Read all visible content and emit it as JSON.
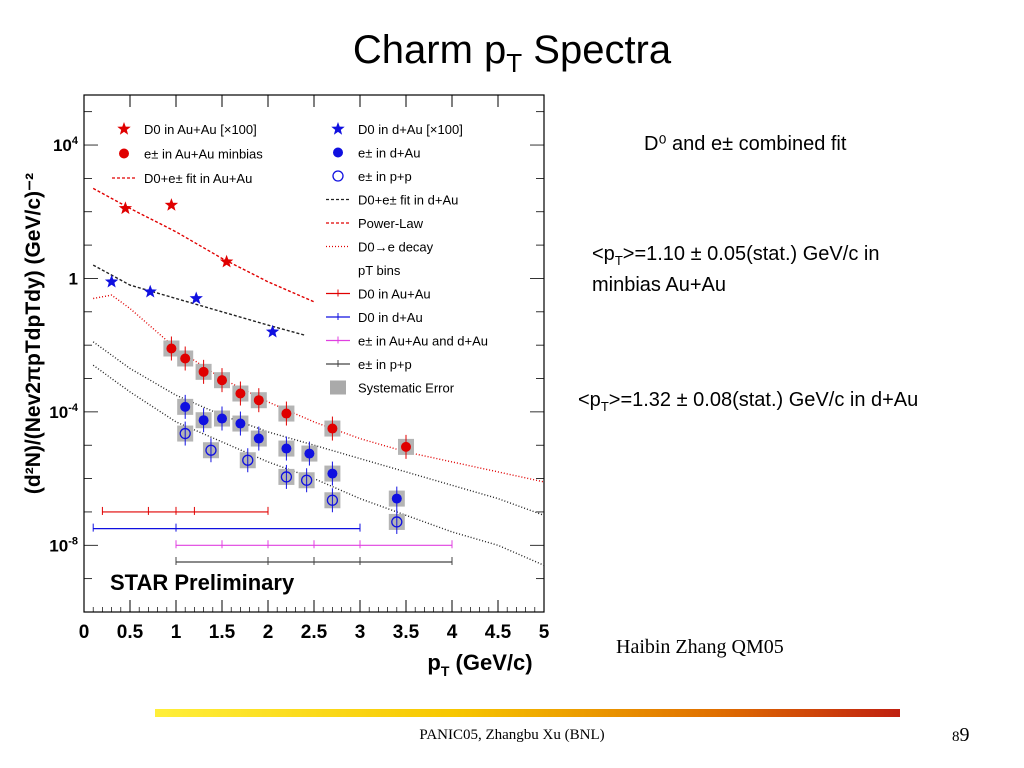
{
  "slide": {
    "title_main": "Charm p",
    "title_sub": "T",
    "title_tail": " Spectra",
    "combined_fit": "D⁰ and e± combined fit",
    "note_auau_1": "<p",
    "note_auau_2": "T",
    "note_auau_3": ">=1.10 ± 0.05(stat.) GeV/c in",
    "note_auau_4": "minbias Au+Au",
    "note_dau_1": "<p",
    "note_dau_2": "T",
    "note_dau_3": ">=1.32 ± 0.08(stat.) GeV/c in d+Au",
    "credit": "Haibin Zhang  QM05",
    "footer": "PANIC05,  Zhangbu Xu (BNL)",
    "page_small": "8",
    "page_big": "9"
  },
  "chart_data": {
    "type": "scatter",
    "title": "",
    "xlabel": "pT (GeV/c)",
    "ylabel": "(d²N)/(Nev2πpTdpTdy) (GeV/c)⁻²",
    "xlim": [
      0,
      5
    ],
    "ylim_log10": [
      -10,
      5.5
    ],
    "x_ticks": [
      "0",
      "0.5",
      "1",
      "1.5",
      "2",
      "2.5",
      "3",
      "3.5",
      "4",
      "4.5",
      "5"
    ],
    "y_ticks": [
      "10^4",
      "1",
      "10^-4",
      "10^-8"
    ],
    "y_tick_values": [
      4,
      0,
      -4,
      -8
    ],
    "annotation": "STAR Preliminary",
    "legend_position": "top",
    "series": [
      {
        "name": "D0 in Au+Au [×100]",
        "marker": "star",
        "color": "#e00000",
        "x": [
          0.45,
          0.95,
          1.55
        ],
        "log10y": [
          2.1,
          2.2,
          0.5
        ]
      },
      {
        "name": "D0 in d+Au [×100]",
        "marker": "star",
        "color": "#1010e0",
        "x": [
          0.3,
          0.72,
          1.22,
          2.05
        ],
        "log10y": [
          -0.1,
          -0.4,
          -0.6,
          -1.6
        ]
      },
      {
        "name": "e± in Au+Au minbias",
        "marker": "circle",
        "color": "#e00000",
        "x": [
          0.95,
          1.1,
          1.3,
          1.5,
          1.7,
          1.9,
          2.2,
          2.7,
          3.5
        ],
        "log10y": [
          -2.1,
          -2.4,
          -2.8,
          -3.05,
          -3.45,
          -3.65,
          -4.05,
          -4.5,
          -5.05
        ]
      },
      {
        "name": "e± in d+Au",
        "marker": "circle",
        "color": "#1010e0",
        "x": [
          1.1,
          1.3,
          1.5,
          1.7,
          1.9,
          2.2,
          2.45,
          2.7,
          3.4
        ],
        "log10y": [
          -3.85,
          -4.25,
          -4.2,
          -4.35,
          -4.8,
          -5.1,
          -5.25,
          -5.85,
          -6.6
        ]
      },
      {
        "name": "e± in p+p",
        "marker": "open-circle",
        "color": "#1010e0",
        "x": [
          1.1,
          1.38,
          1.78,
          2.2,
          2.42,
          2.7,
          3.4
        ],
        "log10y": [
          -4.65,
          -5.15,
          -5.45,
          -5.95,
          -6.05,
          -6.65,
          -7.3
        ]
      }
    ],
    "curves": [
      {
        "name": "D0+e± fit in Au+Au",
        "color": "#e00000",
        "dash": "3,2",
        "x": [
          0.1,
          0.5,
          1.0,
          1.5,
          2.0,
          2.5
        ],
        "log10y": [
          2.7,
          2.1,
          1.4,
          0.6,
          -0.1,
          -0.7
        ]
      },
      {
        "name": "D0+e± fit in d+Au",
        "color": "#222222",
        "dash": "3,2",
        "x": [
          0.1,
          0.5,
          1.0,
          1.5,
          2.0,
          2.4
        ],
        "log10y": [
          0.4,
          -0.2,
          -0.6,
          -1.0,
          -1.4,
          -1.7
        ]
      },
      {
        "name": "D0→e decay",
        "color": "#e00000",
        "dash": "1,2",
        "x": [
          0.1,
          0.3,
          0.5,
          1.0,
          1.5,
          2.0,
          2.5,
          3.0,
          3.5,
          4.0,
          4.5,
          5.0
        ],
        "log10y": [
          -0.6,
          -0.5,
          -0.9,
          -2.1,
          -3.0,
          -3.7,
          -4.3,
          -4.8,
          -5.2,
          -5.5,
          -5.8,
          -6.1
        ]
      },
      {
        "name": "e± in Au+Au and d+Au fit",
        "color": "#222222",
        "dash": "1,2",
        "x": [
          0.1,
          0.5,
          1.0,
          1.5,
          2.0,
          2.5,
          3.0,
          3.5,
          4.0,
          4.5,
          5.0
        ],
        "log10y": [
          -1.9,
          -2.7,
          -3.5,
          -4.1,
          -4.6,
          -5.0,
          -5.4,
          -5.8,
          -6.2,
          -6.6,
          -7.1
        ]
      },
      {
        "name": "e± in p+p fit",
        "color": "#222222",
        "dash": "1,2",
        "x": [
          0.1,
          0.5,
          1.0,
          1.5,
          2.0,
          2.5,
          3.0,
          3.5,
          4.0,
          4.5,
          5.0
        ],
        "log10y": [
          -2.6,
          -3.4,
          -4.3,
          -4.9,
          -5.5,
          -6.0,
          -6.6,
          -7.1,
          -7.6,
          -8.0,
          -8.6
        ]
      }
    ],
    "bins": [
      {
        "name": "D0 in Au+Au",
        "color": "#e00000",
        "log10y": -7.0,
        "x_edges": [
          0.2,
          0.7,
          1.0,
          1.2,
          2.0
        ]
      },
      {
        "name": "D0 in d+Au",
        "color": "#1010e0",
        "log10y": -7.5,
        "x_edges": [
          0.1,
          1.0,
          3.0
        ]
      },
      {
        "name": "e± in Au+Au and d+Au",
        "color": "#e040e0",
        "log10y": -8.0,
        "x_edges": [
          1.0,
          1.5,
          2.0,
          2.5,
          3.0,
          4.0
        ]
      },
      {
        "name": "e± in p+p",
        "color": "#444444",
        "log10y": -8.5,
        "x_edges": [
          1.0,
          2.0,
          2.5,
          3.0,
          4.0
        ]
      }
    ],
    "legend_left": [
      {
        "label": "D0 in Au+Au [×100]",
        "sym": "star",
        "color": "#e00000"
      },
      {
        "label": "e± in Au+Au minbias",
        "sym": "circle",
        "color": "#e00000"
      },
      {
        "label": "D0+e± fit in Au+Au",
        "sym": "dash",
        "color": "#e00000"
      }
    ],
    "legend_right": [
      {
        "label": "D0 in d+Au [×100]",
        "sym": "star",
        "color": "#1010e0"
      },
      {
        "label": "e± in d+Au",
        "sym": "circle",
        "color": "#1010e0"
      },
      {
        "label": "e± in p+p",
        "sym": "open-circle",
        "color": "#1010e0"
      },
      {
        "label": "D0+e± fit in d+Au",
        "sym": "dash",
        "color": "#222222"
      },
      {
        "label": "Power-Law",
        "sym": "dash",
        "color": "#e00000"
      },
      {
        "label": "D0→e decay",
        "sym": "dot",
        "color": "#e00000"
      },
      {
        "label": "pT bins",
        "sym": "none",
        "color": "#000000"
      },
      {
        "label": "D0 in Au+Au",
        "sym": "bin",
        "color": "#e00000"
      },
      {
        "label": "D0 in d+Au",
        "sym": "bin",
        "color": "#1010e0"
      },
      {
        "label": "e± in Au+Au and d+Au",
        "sym": "bin",
        "color": "#e040e0"
      },
      {
        "label": "e± in p+p",
        "sym": "bin",
        "color": "#444444"
      },
      {
        "label": "Systematic Error",
        "sym": "box",
        "color": "#aaaaaa"
      }
    ]
  }
}
